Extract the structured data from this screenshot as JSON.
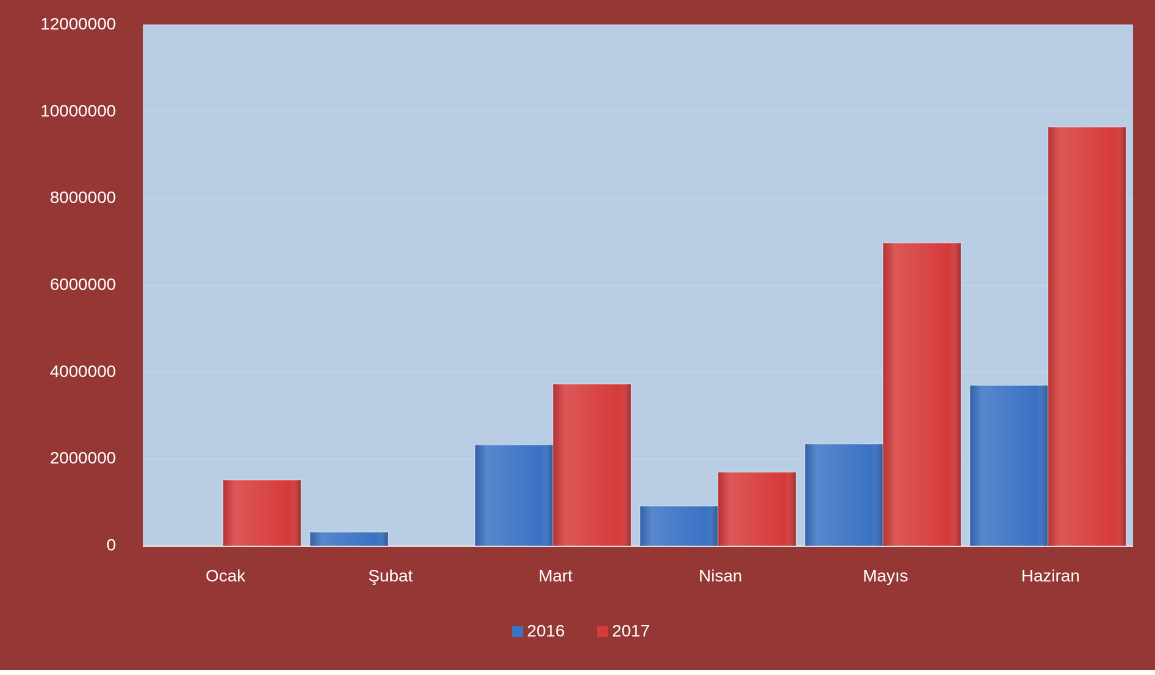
{
  "chart_data": {
    "type": "bar",
    "categories": [
      "Ocak",
      "Şubat",
      "Mart",
      "Nisan",
      "Mayıs",
      "Haziran"
    ],
    "series": [
      {
        "name": "2016",
        "color": "#3a72c4",
        "values": [
          0,
          320000,
          2330000,
          920000,
          2350000,
          3700000
        ]
      },
      {
        "name": "2017",
        "color": "#d63a3a",
        "values": [
          1520000,
          0,
          3730000,
          1700000,
          6980000,
          9650000
        ]
      }
    ],
    "ylim": [
      0,
      12000000
    ],
    "yticks": [
      0,
      2000000,
      4000000,
      6000000,
      8000000,
      10000000,
      12000000
    ],
    "grid": true,
    "legend": "bottom"
  }
}
